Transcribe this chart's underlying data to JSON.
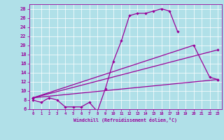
{
  "xlabel": "Windchill (Refroidissement éolien,°C)",
  "xlim": [
    -0.5,
    23.5
  ],
  "ylim": [
    6,
    29
  ],
  "yticks": [
    6,
    8,
    10,
    12,
    14,
    16,
    18,
    20,
    22,
    24,
    26,
    28
  ],
  "xticks": [
    0,
    1,
    2,
    3,
    4,
    5,
    6,
    7,
    8,
    9,
    10,
    11,
    12,
    13,
    14,
    15,
    16,
    17,
    18,
    19,
    20,
    21,
    22,
    23
  ],
  "bg_color": "#b0e0e8",
  "line_color": "#990099",
  "series1_x": [
    0,
    1,
    2,
    3,
    4,
    5,
    6,
    7,
    8,
    9,
    10,
    11,
    12,
    13,
    14,
    15,
    16,
    17,
    18
  ],
  "series1_y": [
    8.0,
    7.5,
    8.5,
    8.0,
    6.5,
    6.5,
    6.5,
    7.5,
    5.5,
    10.5,
    16.5,
    21.0,
    26.5,
    27.0,
    27.0,
    27.5,
    28.0,
    27.5,
    23.0
  ],
  "series2_x": [
    0,
    20,
    22,
    23
  ],
  "series2_y": [
    8.5,
    20.0,
    13.0,
    12.5
  ],
  "series3_x": [
    0,
    23
  ],
  "series3_y": [
    8.5,
    19.0
  ],
  "series4_x": [
    0,
    23
  ],
  "series4_y": [
    8.5,
    12.5
  ],
  "grid_color": "#ffffff",
  "spine_color": "#990099"
}
